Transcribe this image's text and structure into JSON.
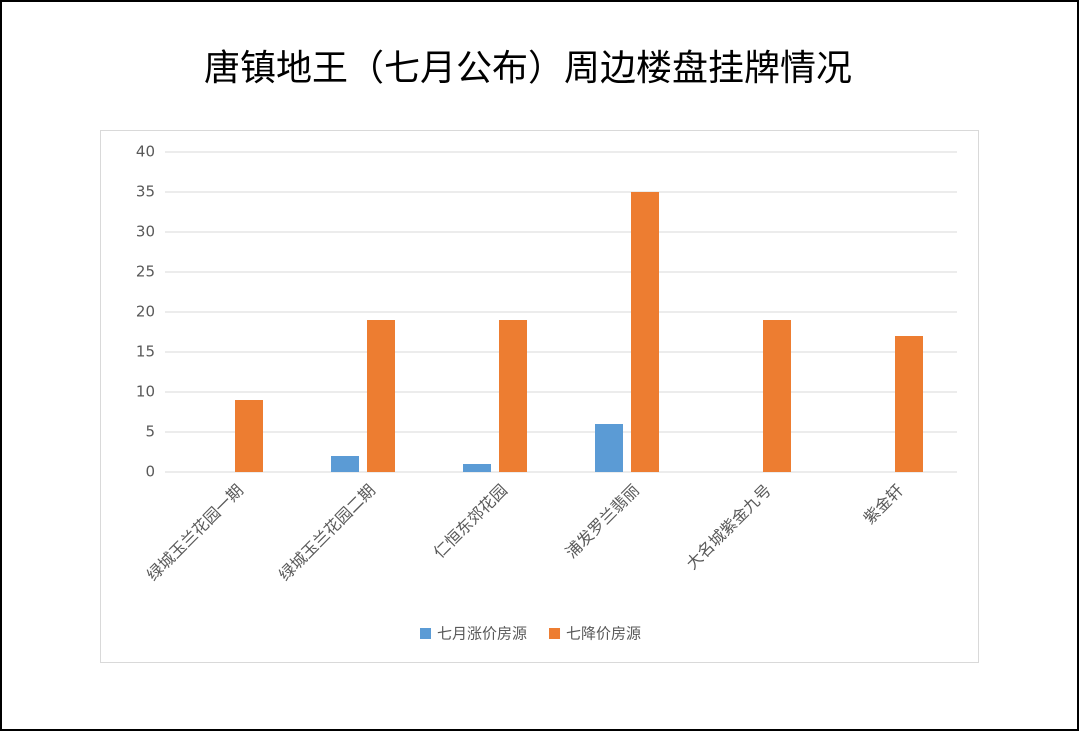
{
  "chart_data": {
    "type": "bar",
    "title": "唐镇地王（七月公布）周边楼盘挂牌情况",
    "categories": [
      "绿城玉兰花园一期",
      "绿城玉兰花园二期",
      "仁恒东郊花园",
      "浦发罗兰翡丽",
      "大名城紫金九号",
      "紫金轩"
    ],
    "series": [
      {
        "name": "七月涨价房源",
        "color": "#5b9bd5",
        "values": [
          0,
          2,
          1,
          6,
          0,
          0
        ]
      },
      {
        "name": "七降价房源",
        "color": "#ed7d31",
        "values": [
          9,
          19,
          19,
          35,
          19,
          17
        ]
      }
    ],
    "ylim": [
      0,
      40
    ],
    "yticks": [
      0,
      5,
      10,
      15,
      20,
      25,
      30,
      35,
      40
    ],
    "grid": true,
    "legend": "bottom"
  }
}
